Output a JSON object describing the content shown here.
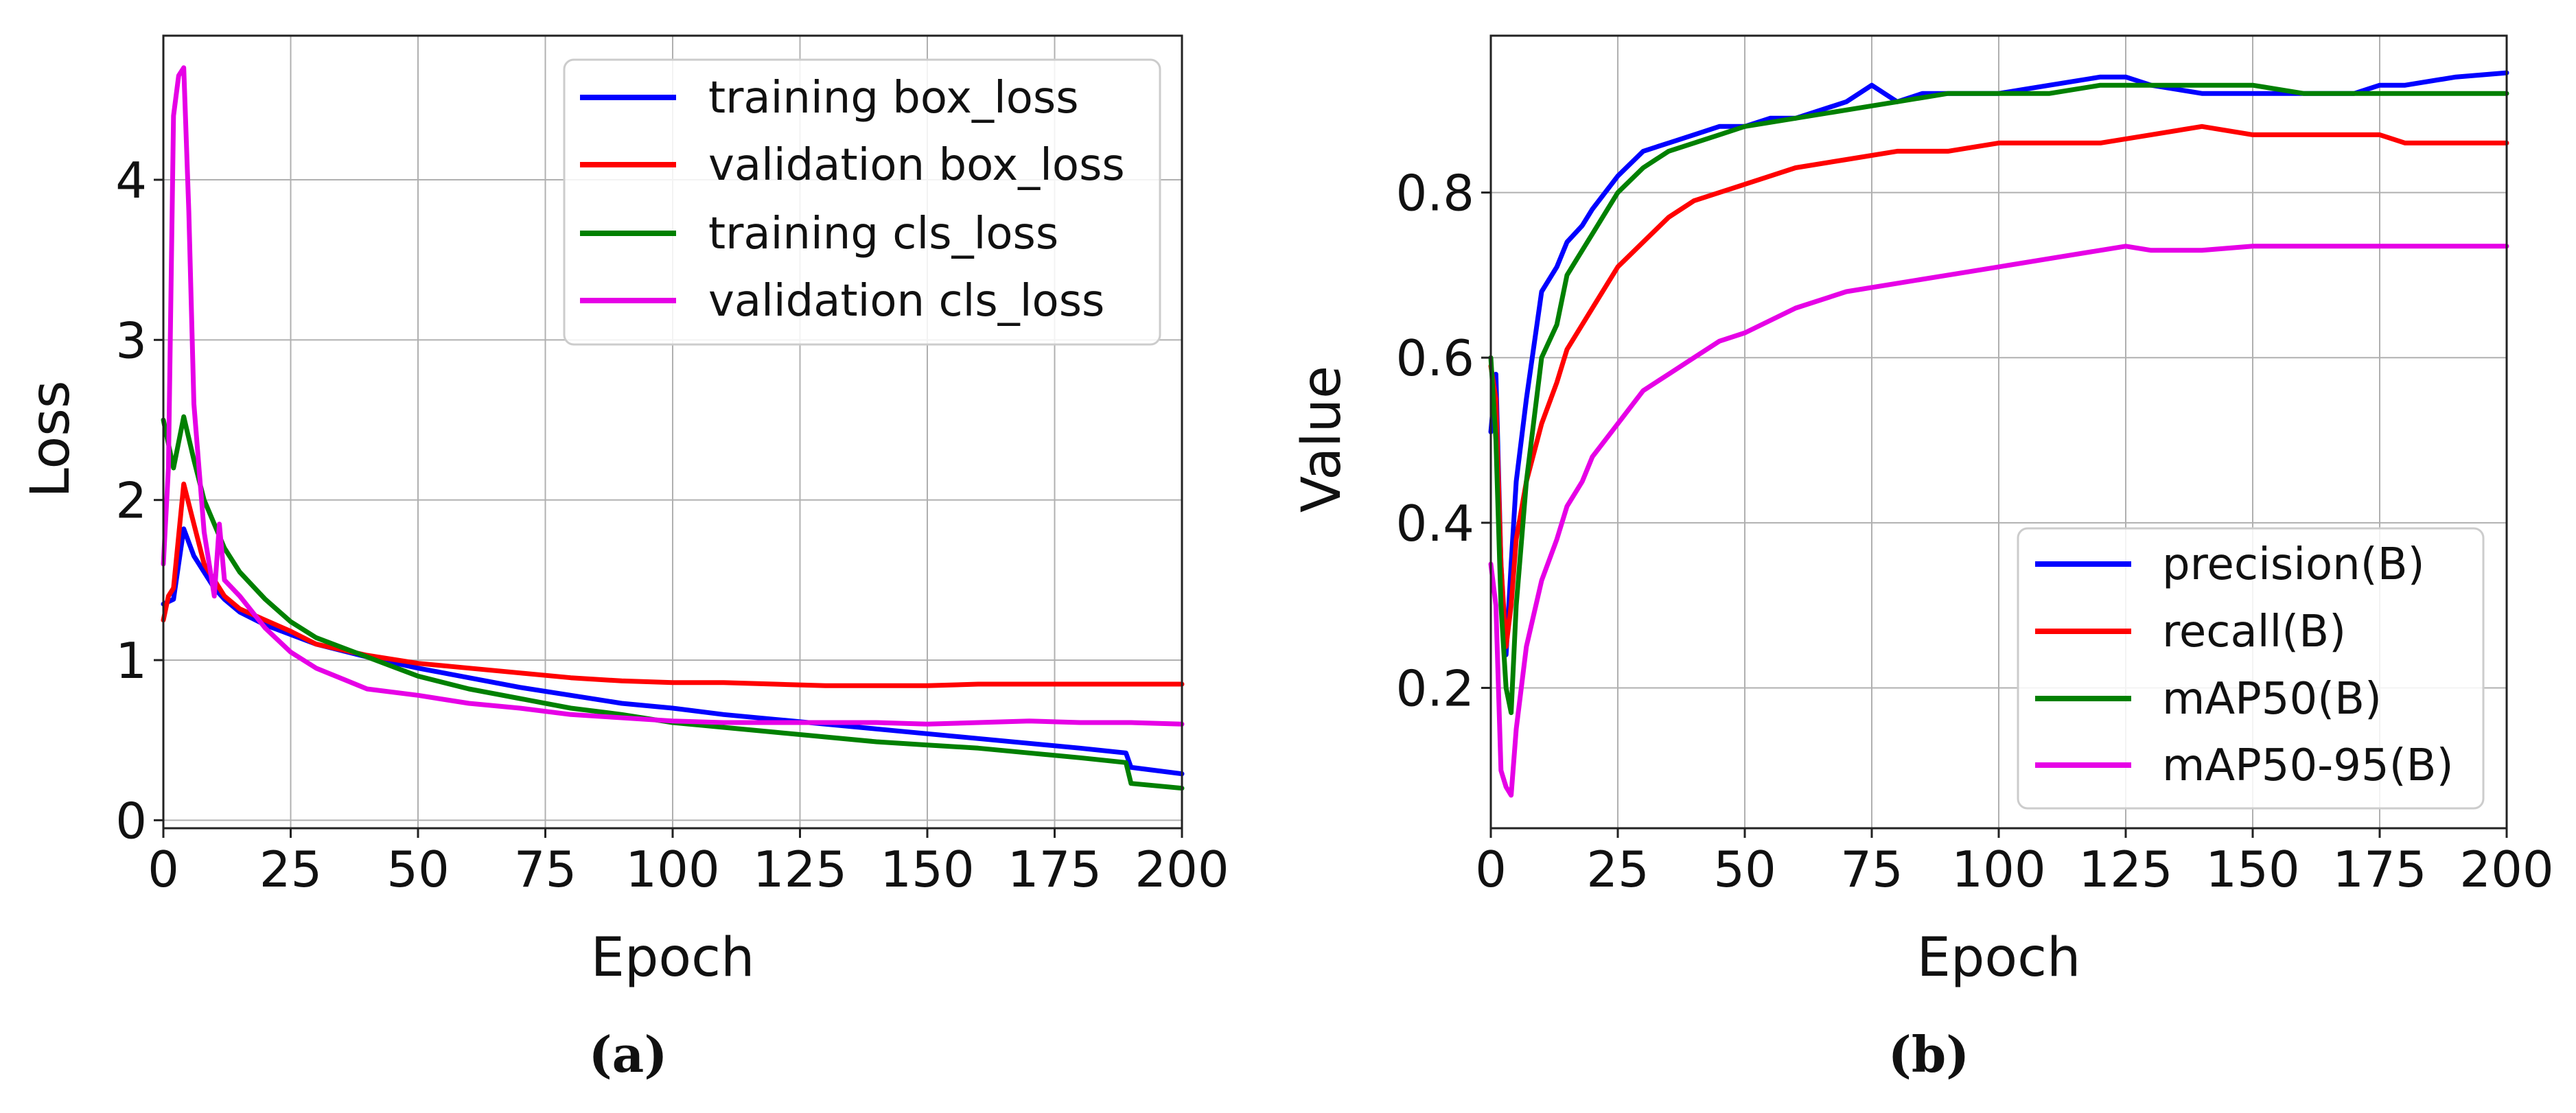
{
  "chart_data": [
    {
      "type": "line",
      "panel": "a",
      "caption": "(a)",
      "xlabel": "Epoch",
      "ylabel": "Loss",
      "xlim": [
        0,
        200
      ],
      "ylim": [
        -0.05,
        4.9
      ],
      "xticks": [
        0,
        25,
        50,
        75,
        100,
        125,
        150,
        175,
        200
      ],
      "yticks": [
        0,
        1,
        2,
        3,
        4
      ],
      "grid": true,
      "legend_position": "top-right",
      "series": [
        {
          "name": "training box_loss",
          "color": "#0000ff",
          "x": [
            0,
            2,
            4,
            6,
            8,
            10,
            12,
            15,
            20,
            25,
            30,
            40,
            50,
            60,
            70,
            80,
            90,
            100,
            110,
            120,
            130,
            140,
            150,
            160,
            170,
            180,
            189,
            190,
            200
          ],
          "y": [
            1.35,
            1.38,
            1.82,
            1.65,
            1.55,
            1.45,
            1.38,
            1.3,
            1.22,
            1.16,
            1.1,
            1.02,
            0.95,
            0.89,
            0.83,
            0.78,
            0.73,
            0.7,
            0.66,
            0.63,
            0.6,
            0.57,
            0.54,
            0.51,
            0.48,
            0.45,
            0.42,
            0.33,
            0.29
          ]
        },
        {
          "name": "validation box_loss",
          "color": "#ff0000",
          "x": [
            0,
            1,
            2,
            4,
            6,
            8,
            10,
            12,
            15,
            20,
            25,
            30,
            40,
            50,
            60,
            70,
            80,
            90,
            100,
            110,
            120,
            130,
            140,
            150,
            160,
            170,
            180,
            190,
            200
          ],
          "y": [
            1.25,
            1.4,
            1.45,
            2.1,
            1.85,
            1.6,
            1.5,
            1.4,
            1.32,
            1.25,
            1.18,
            1.1,
            1.03,
            0.98,
            0.95,
            0.92,
            0.89,
            0.87,
            0.86,
            0.86,
            0.85,
            0.84,
            0.84,
            0.84,
            0.85,
            0.85,
            0.85,
            0.85,
            0.85
          ]
        },
        {
          "name": "training cls_loss",
          "color": "#008000",
          "x": [
            0,
            2,
            4,
            6,
            8,
            10,
            12,
            15,
            20,
            25,
            30,
            40,
            50,
            60,
            70,
            80,
            90,
            100,
            110,
            120,
            130,
            140,
            150,
            160,
            170,
            180,
            189,
            190,
            200
          ],
          "y": [
            2.5,
            2.2,
            2.52,
            2.25,
            2.0,
            1.85,
            1.7,
            1.55,
            1.38,
            1.24,
            1.14,
            1.02,
            0.9,
            0.82,
            0.76,
            0.7,
            0.66,
            0.61,
            0.58,
            0.55,
            0.52,
            0.49,
            0.47,
            0.45,
            0.42,
            0.39,
            0.36,
            0.23,
            0.2
          ]
        },
        {
          "name": "validation cls_loss",
          "color": "#e600e6",
          "x": [
            0,
            1,
            2,
            3,
            4,
            5,
            6,
            7,
            8,
            9,
            10,
            11,
            12,
            15,
            20,
            25,
            30,
            40,
            50,
            60,
            70,
            80,
            90,
            100,
            110,
            120,
            130,
            140,
            150,
            160,
            170,
            180,
            190,
            200
          ],
          "y": [
            1.6,
            2.2,
            4.4,
            4.65,
            4.7,
            3.8,
            2.6,
            2.2,
            1.8,
            1.6,
            1.4,
            1.85,
            1.5,
            1.4,
            1.2,
            1.05,
            0.95,
            0.82,
            0.78,
            0.73,
            0.7,
            0.66,
            0.64,
            0.62,
            0.61,
            0.61,
            0.61,
            0.61,
            0.6,
            0.61,
            0.62,
            0.61,
            0.61,
            0.6
          ]
        }
      ]
    },
    {
      "type": "line",
      "panel": "b",
      "caption": "(b)",
      "xlabel": "Epoch",
      "ylabel": "Value",
      "xlim": [
        0,
        200
      ],
      "ylim": [
        0.03,
        0.99
      ],
      "xticks": [
        0,
        25,
        50,
        75,
        100,
        125,
        150,
        175,
        200
      ],
      "yticks": [
        0.2,
        0.4,
        0.6,
        0.8
      ],
      "ytick_labels": [
        "0.2",
        "0.4",
        "0.6",
        "0.8"
      ],
      "grid": true,
      "legend_position": "bottom-right",
      "series": [
        {
          "name": "precision(B)",
          "color": "#0000ff",
          "x": [
            0,
            1,
            2,
            3,
            4,
            5,
            7,
            10,
            13,
            15,
            18,
            20,
            25,
            30,
            35,
            40,
            45,
            50,
            55,
            60,
            65,
            70,
            75,
            80,
            85,
            90,
            95,
            100,
            110,
            120,
            125,
            130,
            140,
            150,
            160,
            170,
            175,
            180,
            190,
            200
          ],
          "y": [
            0.51,
            0.58,
            0.35,
            0.24,
            0.35,
            0.45,
            0.55,
            0.68,
            0.71,
            0.74,
            0.76,
            0.78,
            0.82,
            0.85,
            0.86,
            0.87,
            0.88,
            0.88,
            0.89,
            0.89,
            0.9,
            0.91,
            0.93,
            0.91,
            0.92,
            0.92,
            0.92,
            0.92,
            0.93,
            0.94,
            0.94,
            0.93,
            0.92,
            0.92,
            0.92,
            0.92,
            0.93,
            0.93,
            0.94,
            0.945
          ]
        },
        {
          "name": "recall(B)",
          "color": "#ff0000",
          "x": [
            0,
            1,
            2,
            3,
            4,
            5,
            7,
            10,
            13,
            15,
            18,
            20,
            25,
            30,
            35,
            40,
            45,
            50,
            60,
            70,
            80,
            90,
            100,
            110,
            120,
            130,
            140,
            150,
            160,
            170,
            175,
            180,
            190,
            200
          ],
          "y": [
            0.59,
            0.55,
            0.35,
            0.25,
            0.3,
            0.38,
            0.45,
            0.52,
            0.57,
            0.61,
            0.64,
            0.66,
            0.71,
            0.74,
            0.77,
            0.79,
            0.8,
            0.81,
            0.83,
            0.84,
            0.85,
            0.85,
            0.86,
            0.86,
            0.86,
            0.87,
            0.88,
            0.87,
            0.87,
            0.87,
            0.87,
            0.86,
            0.86,
            0.86
          ]
        },
        {
          "name": "mAP50(B)",
          "color": "#008000",
          "x": [
            0,
            1,
            2,
            3,
            4,
            5,
            7,
            10,
            13,
            15,
            18,
            20,
            25,
            30,
            35,
            40,
            45,
            50,
            60,
            70,
            80,
            90,
            100,
            110,
            120,
            130,
            140,
            150,
            160,
            170,
            180,
            190,
            200
          ],
          "y": [
            0.6,
            0.5,
            0.3,
            0.2,
            0.17,
            0.3,
            0.45,
            0.6,
            0.64,
            0.7,
            0.73,
            0.75,
            0.8,
            0.83,
            0.85,
            0.86,
            0.87,
            0.88,
            0.89,
            0.9,
            0.91,
            0.92,
            0.92,
            0.92,
            0.93,
            0.93,
            0.93,
            0.93,
            0.92,
            0.92,
            0.92,
            0.92,
            0.92
          ]
        },
        {
          "name": "mAP50-95(B)",
          "color": "#e600e6",
          "x": [
            0,
            1,
            2,
            3,
            4,
            5,
            7,
            10,
            13,
            15,
            18,
            20,
            25,
            30,
            35,
            40,
            45,
            50,
            60,
            70,
            80,
            90,
            100,
            110,
            120,
            125,
            130,
            140,
            150,
            160,
            170,
            180,
            190,
            200
          ],
          "y": [
            0.35,
            0.3,
            0.1,
            0.08,
            0.07,
            0.15,
            0.25,
            0.33,
            0.38,
            0.42,
            0.45,
            0.48,
            0.52,
            0.56,
            0.58,
            0.6,
            0.62,
            0.63,
            0.66,
            0.68,
            0.69,
            0.7,
            0.71,
            0.72,
            0.73,
            0.735,
            0.73,
            0.73,
            0.735,
            0.735,
            0.735,
            0.735,
            0.735,
            0.735
          ]
        }
      ]
    }
  ]
}
